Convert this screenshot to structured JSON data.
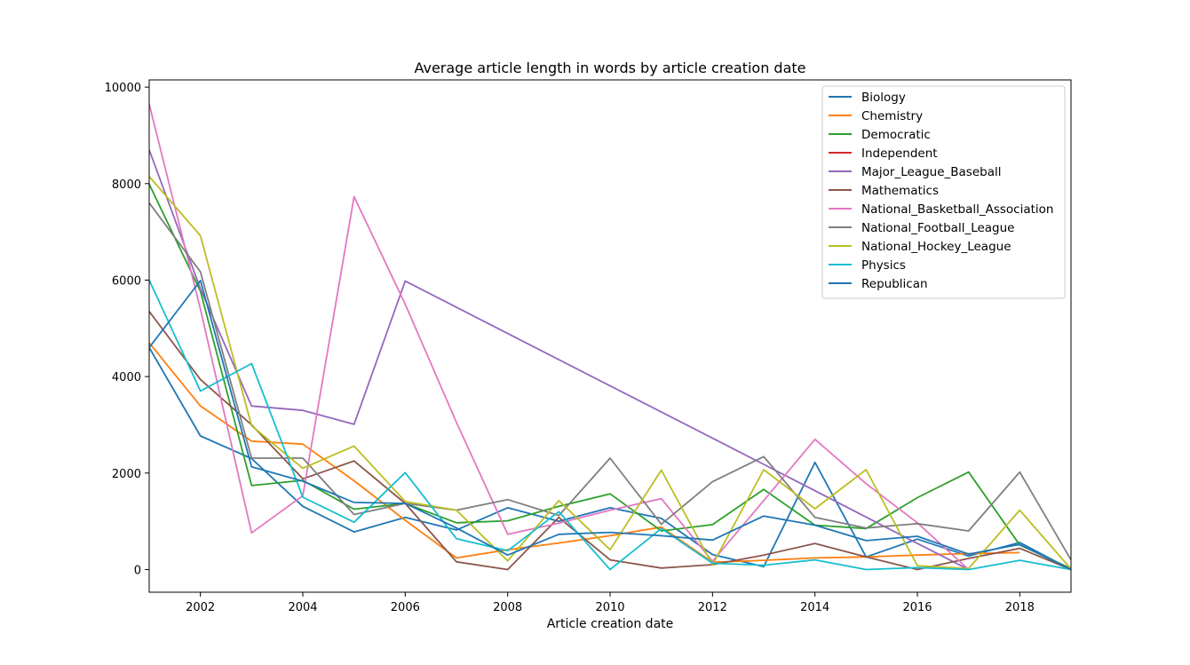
{
  "chart_data": {
    "type": "line",
    "title": "Average article length in words by article creation date",
    "xlabel": "Article creation date",
    "ylabel": "",
    "xlim": [
      2001,
      2019
    ],
    "ylim": [
      -470,
      10150
    ],
    "xticks": [
      2002,
      2004,
      2006,
      2008,
      2010,
      2012,
      2014,
      2016,
      2018
    ],
    "yticks": [
      0,
      2000,
      4000,
      6000,
      8000,
      10000
    ],
    "legend_position": "top-right",
    "series": [
      {
        "name": "Biology",
        "color": "#1f77b4",
        "points": [
          [
            2001,
            4600
          ],
          [
            2002,
            2770
          ],
          [
            2003,
            2300
          ],
          [
            2004,
            1310
          ],
          [
            2005,
            780
          ],
          [
            2006,
            1080
          ],
          [
            2007,
            820
          ],
          [
            2008,
            1280
          ],
          [
            2009,
            1000
          ],
          [
            2010,
            1280
          ],
          [
            2011,
            1060
          ],
          [
            2012,
            310
          ],
          [
            2013,
            60
          ],
          [
            2014,
            2220
          ],
          [
            2015,
            260
          ],
          [
            2016,
            630
          ],
          [
            2017,
            280
          ],
          [
            2018,
            560
          ],
          [
            2019,
            0
          ]
        ]
      },
      {
        "name": "Chemistry",
        "color": "#ff7f0e",
        "points": [
          [
            2001,
            4700
          ],
          [
            2002,
            3390
          ],
          [
            2003,
            2660
          ],
          [
            2004,
            2600
          ],
          [
            2005,
            1840
          ],
          [
            2006,
            1020
          ],
          [
            2007,
            240
          ],
          [
            2008,
            410
          ],
          [
            2009,
            550
          ],
          [
            2010,
            700
          ],
          [
            2011,
            880
          ],
          [
            2012,
            150
          ],
          [
            2013,
            190
          ],
          [
            2014,
            240
          ],
          [
            2015,
            260
          ],
          [
            2016,
            300
          ],
          [
            2017,
            330
          ],
          [
            2018,
            350
          ]
        ]
      },
      {
        "name": "Democratic",
        "color": "#2ca02c",
        "points": [
          [
            2001,
            7990
          ],
          [
            2002,
            5770
          ],
          [
            2003,
            1740
          ],
          [
            2004,
            1850
          ],
          [
            2005,
            1250
          ],
          [
            2006,
            1370
          ],
          [
            2007,
            970
          ],
          [
            2008,
            1010
          ],
          [
            2009,
            1310
          ],
          [
            2010,
            1570
          ],
          [
            2011,
            800
          ],
          [
            2012,
            930
          ],
          [
            2013,
            1660
          ],
          [
            2014,
            920
          ],
          [
            2015,
            850
          ],
          [
            2016,
            1490
          ],
          [
            2017,
            2020
          ],
          [
            2018,
            510
          ],
          [
            2019,
            20
          ]
        ]
      },
      {
        "name": "Independent",
        "color": "#d62728",
        "points": []
      },
      {
        "name": "Major_League_Baseball",
        "color": "#9467bd",
        "points": [
          [
            2001,
            8700
          ],
          [
            2002,
            5820
          ],
          [
            2003,
            3390
          ],
          [
            2004,
            3300
          ],
          [
            2005,
            3010
          ],
          [
            2006,
            5980
          ],
          [
            2013,
            2180
          ],
          [
            2016,
            540
          ],
          [
            2017,
            0
          ]
        ]
      },
      {
        "name": "Mathematics",
        "color": "#8c564b",
        "points": [
          [
            2001,
            5350
          ],
          [
            2002,
            3940
          ],
          [
            2003,
            3000
          ],
          [
            2004,
            1880
          ],
          [
            2005,
            2250
          ],
          [
            2006,
            1370
          ],
          [
            2007,
            160
          ],
          [
            2008,
            0
          ],
          [
            2009,
            1080
          ],
          [
            2010,
            200
          ],
          [
            2011,
            30
          ],
          [
            2012,
            100
          ],
          [
            2013,
            300
          ],
          [
            2014,
            540
          ],
          [
            2015,
            260
          ],
          [
            2016,
            0
          ],
          [
            2017,
            230
          ],
          [
            2018,
            440
          ],
          [
            2019,
            0
          ]
        ]
      },
      {
        "name": "National_Basketball_Association",
        "color": "#e377c2",
        "points": [
          [
            2001,
            9650
          ],
          [
            2002,
            5400
          ],
          [
            2003,
            760
          ],
          [
            2004,
            1530
          ],
          [
            2005,
            7730
          ],
          [
            2006,
            5500
          ],
          [
            2007,
            3050
          ],
          [
            2008,
            730
          ],
          [
            2009,
            960
          ],
          [
            2010,
            1230
          ],
          [
            2011,
            1470
          ],
          [
            2012,
            170
          ],
          [
            2013,
            1430
          ],
          [
            2014,
            2700
          ],
          [
            2015,
            1780
          ],
          [
            2016,
            970
          ],
          [
            2017,
            0
          ]
        ]
      },
      {
        "name": "National_Football_League",
        "color": "#7f7f7f",
        "points": [
          [
            2001,
            7600
          ],
          [
            2002,
            6170
          ],
          [
            2003,
            2310
          ],
          [
            2004,
            2310
          ],
          [
            2005,
            1140
          ],
          [
            2006,
            1370
          ],
          [
            2007,
            1230
          ],
          [
            2008,
            1450
          ],
          [
            2009,
            1120
          ],
          [
            2010,
            2310
          ],
          [
            2011,
            940
          ],
          [
            2012,
            1820
          ],
          [
            2013,
            2340
          ],
          [
            2014,
            1080
          ],
          [
            2015,
            860
          ],
          [
            2016,
            950
          ],
          [
            2017,
            800
          ],
          [
            2018,
            2020
          ],
          [
            2019,
            200
          ]
        ]
      },
      {
        "name": "National_Hockey_League",
        "color": "#bcbd22",
        "points": [
          [
            2001,
            8150
          ],
          [
            2002,
            6920
          ],
          [
            2003,
            2980
          ],
          [
            2004,
            2100
          ],
          [
            2005,
            2560
          ],
          [
            2006,
            1410
          ],
          [
            2007,
            1230
          ],
          [
            2008,
            180
          ],
          [
            2009,
            1430
          ],
          [
            2010,
            410
          ],
          [
            2011,
            2060
          ],
          [
            2012,
            100
          ],
          [
            2013,
            2070
          ],
          [
            2014,
            1260
          ],
          [
            2015,
            2070
          ],
          [
            2016,
            80
          ],
          [
            2017,
            20
          ],
          [
            2018,
            1230
          ],
          [
            2019,
            10
          ]
        ]
      },
      {
        "name": "Physics",
        "color": "#17becf",
        "points": [
          [
            2001,
            6000
          ],
          [
            2002,
            3700
          ],
          [
            2003,
            4270
          ],
          [
            2004,
            1500
          ],
          [
            2005,
            980
          ],
          [
            2006,
            2010
          ],
          [
            2007,
            640
          ],
          [
            2008,
            390
          ],
          [
            2009,
            1200
          ],
          [
            2010,
            0
          ],
          [
            2011,
            850
          ],
          [
            2012,
            130
          ],
          [
            2013,
            90
          ],
          [
            2014,
            200
          ],
          [
            2015,
            0
          ],
          [
            2016,
            40
          ],
          [
            2017,
            0
          ],
          [
            2018,
            190
          ],
          [
            2019,
            0
          ]
        ]
      },
      {
        "name": "Republican",
        "color": "#1f77b4",
        "points": [
          [
            2001,
            4600
          ],
          [
            2002,
            5990
          ],
          [
            2003,
            2130
          ],
          [
            2004,
            1830
          ],
          [
            2005,
            1390
          ],
          [
            2006,
            1370
          ],
          [
            2007,
            860
          ],
          [
            2008,
            300
          ],
          [
            2009,
            730
          ],
          [
            2010,
            770
          ],
          [
            2011,
            700
          ],
          [
            2012,
            610
          ],
          [
            2013,
            1110
          ],
          [
            2014,
            920
          ],
          [
            2015,
            600
          ],
          [
            2016,
            690
          ],
          [
            2017,
            320
          ],
          [
            2018,
            520
          ],
          [
            2019,
            0
          ]
        ]
      }
    ]
  }
}
